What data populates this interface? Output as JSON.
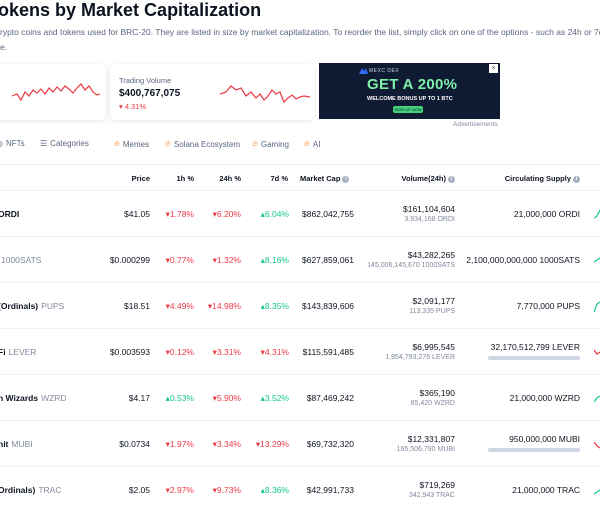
{
  "page": {
    "title": "okens by Market Capitalization",
    "desc_line1": "rypto coins and tokens used for BRC-20. They are listed in size by market capitalization. To reorder the list, simply click on one of the options - such as 24h or 7d",
    "desc_line2": "e."
  },
  "volume_card": {
    "label": "Trading Volume",
    "value": "$400,767,075",
    "change": "4.31%"
  },
  "ad": {
    "brand": "MEXC DEX",
    "headline": "GET A 200%",
    "sub": "WELCOME BONUS UP TO 1 BTC",
    "button": "SIGN UP NOW",
    "close": "×",
    "caption": "Advertisements"
  },
  "tabs": [
    {
      "label": "NFTs",
      "icon": "image-icon"
    },
    {
      "label": "Categories",
      "icon": "list-icon"
    },
    {
      "label": "Memes",
      "icon": "fire-icon"
    },
    {
      "label": "Solana Ecosystem",
      "icon": "fire-icon"
    },
    {
      "label": "Gaming",
      "icon": "fire-icon"
    },
    {
      "label": "AI",
      "icon": "fire-icon"
    }
  ],
  "columns": {
    "price": "Price",
    "h1": "1h %",
    "h24": "24h %",
    "d7": "7d %",
    "mcap": "Market Cap",
    "volume": "Volume(24h)",
    "supply": "Circulating Supply"
  },
  "rows": [
    {
      "name": "ORDI",
      "symbol": "",
      "price": "$41.05",
      "h1": "1.78%",
      "h24": "6.20%",
      "d7": "6.04%",
      "mcap": "$862,042,755",
      "volume": "$161,104,604",
      "volume_sub": "3,934,168 ORDI",
      "supply": "21,000,000 ORDI",
      "supply_fill": null
    },
    {
      "name": "",
      "symbol": "1000SATS",
      "price": "$0.000299",
      "h1": "0.77%",
      "h24": "1.32%",
      "d7": "8.16%",
      "mcap": "$627,859,061",
      "volume": "$43,282,265",
      "volume_sub": "145,006,145,670 1000SATS",
      "supply": "2,100,000,000,000 1000SATS",
      "supply_fill": null
    },
    {
      "name": "(Ordinals)",
      "symbol": "PUPS",
      "price": "$18.51",
      "h1": "4.49%",
      "h24": "14.98%",
      "d7": "8.35%",
      "mcap": "$143,839,606",
      "volume": "$2,091,177",
      "volume_sub": "113,335 PUPS",
      "supply": "7,770,000 PUPS",
      "supply_fill": null
    },
    {
      "name": "Fi",
      "symbol": "LEVER",
      "price": "$0.003593",
      "h1": "0.12%",
      "h24": "3.31%",
      "d7": "4.31%",
      "mcap": "$115,591,485",
      "volume": "$6,995,545",
      "volume_sub": "1,954,793,276 LEVER",
      "supply": "32,170,512,799 LEVER",
      "supply_fill": 1.0
    },
    {
      "name": "n Wizards",
      "symbol": "WZRD",
      "price": "$4.17",
      "h1": "0.53%",
      "h24": "5.90%",
      "d7": "3.52%",
      "mcap": "$87,469,242",
      "volume": "$365,190",
      "volume_sub": "85,420 WZRD",
      "supply": "21,000,000 WZRD",
      "supply_fill": null
    },
    {
      "name": "nit",
      "symbol": "MUBI",
      "price": "$0.0734",
      "h1": "1.97%",
      "h24": "3.34%",
      "d7": "13.29%",
      "mcap": "$69,732,320",
      "volume": "$12,331,807",
      "volume_sub": "165,506,790 MUBI",
      "supply": "950,000,000 MUBI",
      "supply_fill": 1.0
    },
    {
      "name": "Ordinals)",
      "symbol": "TRAC",
      "price": "$2.05",
      "h1": "2.97%",
      "h24": "9.73%",
      "d7": "8.36%",
      "mcap": "$42,991,733",
      "volume": "$719,269",
      "volume_sub": "342,943 TRAC",
      "supply": "21,000,000 TRAC",
      "supply_fill": null
    }
  ],
  "directions": {
    "h1": [
      "down",
      "down",
      "down",
      "down",
      "up",
      "down",
      "down"
    ],
    "h24": [
      "down",
      "down",
      "down",
      "down",
      "down",
      "down",
      "down"
    ],
    "d7": [
      "up",
      "up",
      "up",
      "down",
      "up",
      "down",
      "up"
    ]
  },
  "colors": {
    "up": "#16c784",
    "down": "#ea3943",
    "text": "#0d1421",
    "muted": "#808a9d"
  }
}
